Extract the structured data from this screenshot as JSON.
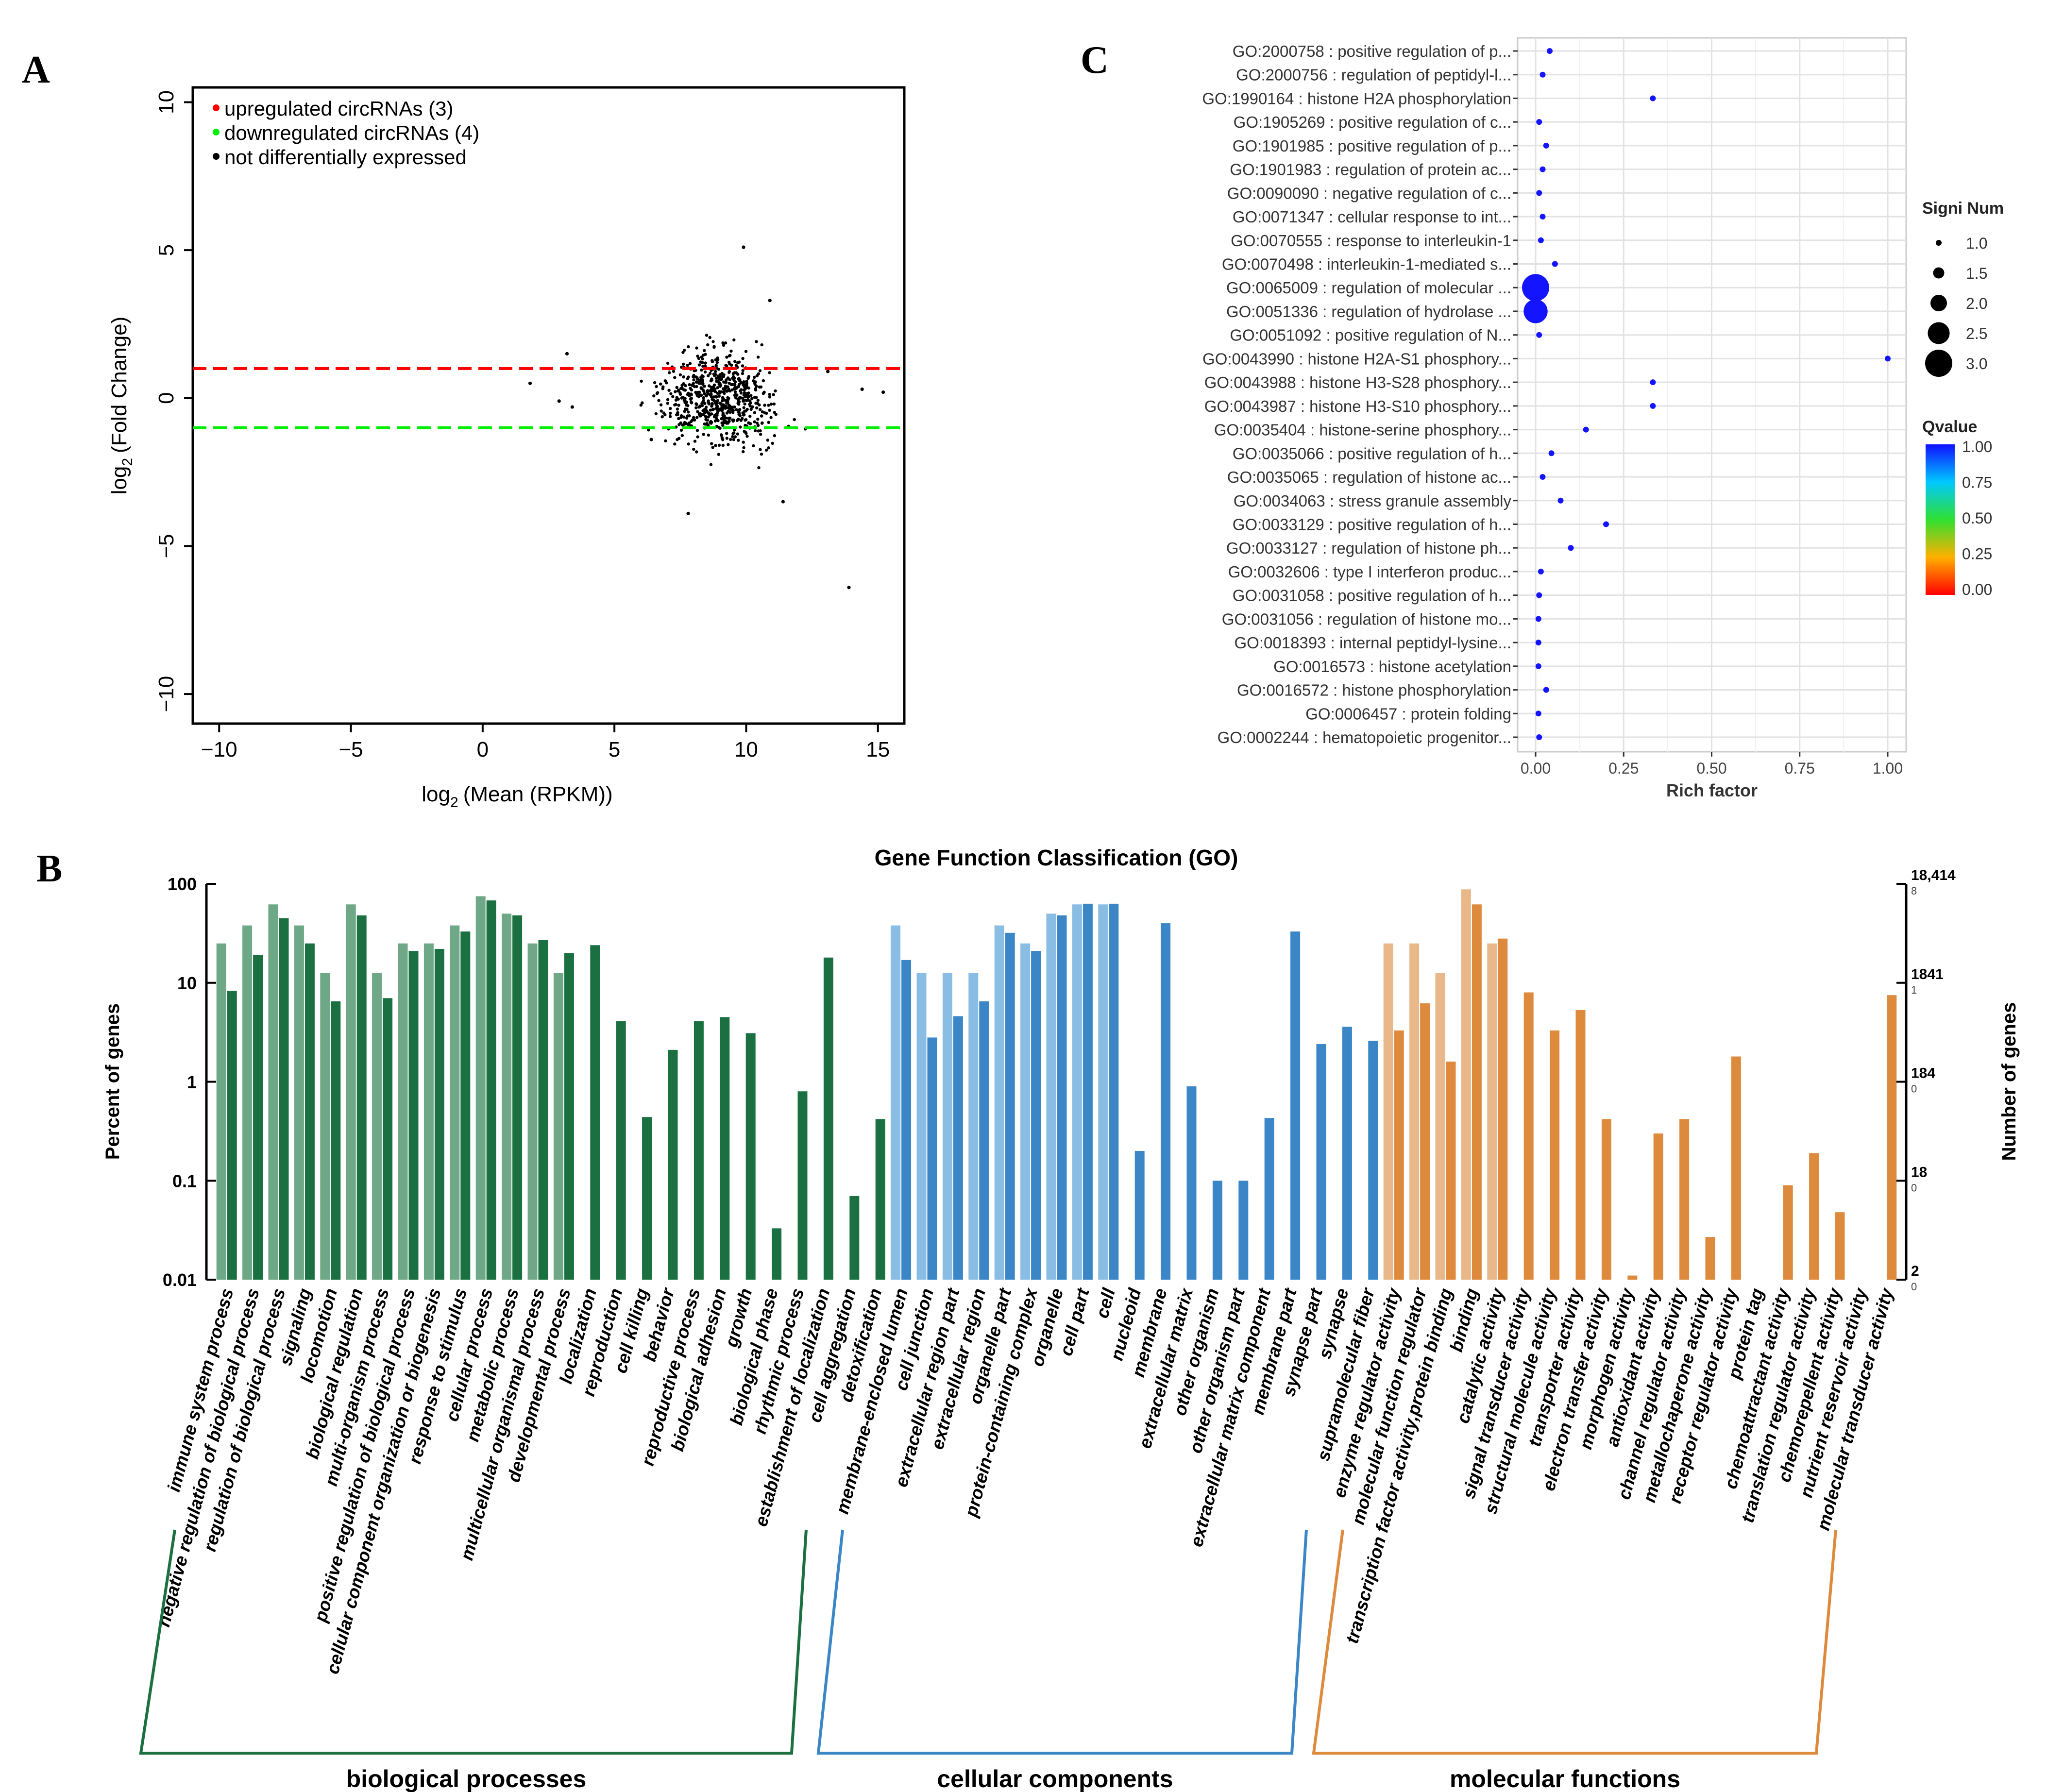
{
  "panels": {
    "a": "A",
    "b": "B",
    "c": "C"
  },
  "chart_data": [
    {
      "panel": "A",
      "type": "scatter",
      "title": "",
      "xlabel": "(Mean  (RPKM))",
      "ylabel": "(Fold Change)",
      "log_prefix": "log",
      "log_sub": "2",
      "xlim": [
        -11,
        16
      ],
      "ylim": [
        -11,
        10.5
      ],
      "xticks": [
        -10,
        -5,
        0,
        5,
        10,
        15
      ],
      "yticks": [
        -10,
        -5,
        0,
        5,
        10
      ],
      "thresholds": [
        {
          "y": 1,
          "color": "#ff0000"
        },
        {
          "y": -1,
          "color": "#00ee00"
        }
      ],
      "legend": {
        "placement": "top-left",
        "entries": [
          {
            "label": "upregulated circRNAs (3)",
            "color": "#ff0000"
          },
          {
            "label": "downregulated circRNAs (4)",
            "color": "#00ee00"
          },
          {
            "label": "not differentially expressed",
            "color": "#000000"
          }
        ]
      },
      "cloud": {
        "count": 700,
        "x_center": 8.9,
        "x_sd": 1.5,
        "y_sd": 1.05
      },
      "outliers": [
        [
          13.9,
          -6.4
        ],
        [
          9.9,
          5.1
        ],
        [
          14.4,
          0.3
        ],
        [
          1.8,
          0.5
        ],
        [
          3.2,
          1.5
        ],
        [
          3.4,
          -0.3
        ],
        [
          2.9,
          -0.1
        ],
        [
          15.2,
          0.2
        ],
        [
          7.8,
          -3.9
        ],
        [
          11.4,
          -3.5
        ],
        [
          10.9,
          3.3
        ],
        [
          6.4,
          -1.4
        ],
        [
          13.1,
          0.9
        ]
      ]
    },
    {
      "panel": "B",
      "type": "bar",
      "title": "Gene Function Classification (GO)",
      "ylabel": "Percent of genes",
      "y2label": "Number of genes",
      "yscale": "log",
      "ylim": [
        0.01,
        100
      ],
      "yticks": [
        "100",
        "10",
        "1",
        "0.1",
        "0.01"
      ],
      "right_ticks": [
        {
          "big": "18,414",
          "small": "8",
          "frac": 1
        },
        {
          "big": "1841",
          "small": "1",
          "frac": 0.75
        },
        {
          "big": "184",
          "small": "0",
          "frac": 0.5
        },
        {
          "big": "18",
          "small": "0",
          "frac": 0.25
        },
        {
          "big": "2",
          "small": "0",
          "frac": 0
        }
      ],
      "legend_note": "pairs: lighter bar = first sample, darker bar = second sample",
      "groups": [
        {
          "name": "biological processes",
          "light": "#6fa886",
          "dark": "#1a7040",
          "categories": [
            "immune system process",
            "negative regulation of biological process",
            "regulation of biological process",
            "signaling",
            "locomotion",
            "biological regulation",
            "multi-organism process",
            "positive regulation of biological process",
            "cellular component organization or biogenesis",
            "response to stimulus",
            "cellular process",
            "metabolic process",
            "multicellular organismal process",
            "developmental process",
            "localization",
            "reproduction",
            "cell killing",
            "behavior",
            "reproductive process",
            "biological adhesion",
            "growth",
            "biological phase",
            "rhythmic process",
            "establishment of localization",
            "cell aggregation",
            "detoxification"
          ],
          "light_values": [
            25,
            38,
            62,
            38,
            12.5,
            62,
            12.5,
            25,
            25,
            38,
            75,
            50,
            25,
            12.5,
            0
          ],
          "dark_values": [
            8.3,
            19,
            45,
            25,
            6.5,
            48,
            7,
            21,
            22,
            33,
            68,
            48,
            27,
            20,
            24,
            4.1,
            0.44,
            2.1,
            4.1,
            4.5,
            3.1,
            0.033,
            0.8,
            18,
            0.07,
            0.42
          ]
        },
        {
          "name": "cellular components",
          "light": "#8abde4",
          "dark": "#3a86c6",
          "categories": [
            "membrane-enclosed lumen",
            "cell junction",
            "extracellular region part",
            "extracellular region",
            "organelle part",
            "protein-containing complex",
            "organelle",
            "cell part",
            "cell",
            "nucleoid",
            "membrane",
            "extracellular matrix",
            "other organism",
            "other organism part",
            "extracellular matrix component",
            "membrane part",
            "synapse part",
            "synapse",
            "supramolecular fiber"
          ],
          "light_values": [
            38,
            12.5,
            12.5,
            12.5,
            38,
            25,
            50,
            62,
            62
          ],
          "dark_values": [
            17,
            2.8,
            4.6,
            6.5,
            32,
            21,
            48,
            63,
            63,
            0.2,
            40,
            0.9,
            0.1,
            0.1,
            0.43,
            33,
            2.4,
            3.6,
            2.6
          ]
        },
        {
          "name": "molecular functions",
          "light": "#e8b88a",
          "dark": "#de8a3c",
          "categories": [
            "enzyme regulator activity",
            "molecular function regulator",
            "transcription factor activity,protein binding",
            "binding",
            "catalytic activity",
            "signal transducer activity",
            "structural molecule activity",
            "transporter activity",
            "electron transfer activity",
            "morphogen activity",
            "antioxidant activity",
            "channel regulator activity",
            "metallochaperone activity",
            "receptor regulator activity",
            "protein tag",
            "chemoattractant activity",
            "translation regulator activity",
            "chemorepellent activity",
            "nutrient reservoir activity",
            "molecular transducer activity"
          ],
          "light_values": [
            25,
            25,
            12.5,
            88,
            25
          ],
          "dark_values": [
            3.3,
            6.2,
            1.6,
            62,
            28,
            8,
            3.3,
            5.3,
            0.42,
            0.011,
            0.3,
            0.42,
            0.027,
            1.8,
            0,
            0.09,
            0.19,
            0.048,
            0,
            7.5
          ]
        }
      ]
    },
    {
      "panel": "C",
      "type": "scatter",
      "xlabel": "Rich factor",
      "xlim": [
        0,
        1
      ],
      "xticks": [
        "0.00",
        "0.25",
        "0.50",
        "0.75",
        "1.00"
      ],
      "size_legend_title": "Signi Num",
      "size_legend": [
        "1.0",
        "1.5",
        "2.0",
        "2.5",
        "3.0"
      ],
      "color_legend_title": "Qvalue",
      "color_legend": [
        "1.00",
        "0.75",
        "0.50",
        "0.25",
        "0.00"
      ],
      "terms": [
        {
          "label": "GO:2000758 : positive regulation of p...",
          "x": 0.04,
          "n": 1
        },
        {
          "label": "GO:2000756 : regulation of peptidyl-l...",
          "x": 0.02,
          "n": 1
        },
        {
          "label": "GO:1990164 : histone H2A phosphorylation",
          "x": 0.333,
          "n": 1
        },
        {
          "label": "GO:1905269 : positive regulation of c...",
          "x": 0.01,
          "n": 1
        },
        {
          "label": "GO:1901985 : positive regulation of p...",
          "x": 0.03,
          "n": 1
        },
        {
          "label": "GO:1901983 : regulation of protein ac...",
          "x": 0.02,
          "n": 1
        },
        {
          "label": "GO:0090090 : negative regulation of c...",
          "x": 0.01,
          "n": 1
        },
        {
          "label": "GO:0071347 : cellular response to int...",
          "x": 0.02,
          "n": 1
        },
        {
          "label": "GO:0070555 : response to interleukin-1",
          "x": 0.015,
          "n": 1
        },
        {
          "label": "GO:0070498 : interleukin-1-mediated s...",
          "x": 0.055,
          "n": 1
        },
        {
          "label": "GO:0065009 : regulation of molecular ...",
          "x": 0.0,
          "n": 3
        },
        {
          "label": "GO:0051336 : regulation of hydrolase ...",
          "x": 0.0,
          "n": 2.7
        },
        {
          "label": "GO:0051092 : positive regulation of N...",
          "x": 0.01,
          "n": 1
        },
        {
          "label": "GO:0043990 : histone H2A-S1 phosphory...",
          "x": 1.0,
          "n": 1
        },
        {
          "label": "GO:0043988 : histone H3-S28 phosphory...",
          "x": 0.333,
          "n": 1
        },
        {
          "label": "GO:0043987 : histone H3-S10 phosphory...",
          "x": 0.333,
          "n": 1
        },
        {
          "label": "GO:0035404 : histone-serine phosphory...",
          "x": 0.143,
          "n": 1
        },
        {
          "label": "GO:0035066 : positive regulation of h...",
          "x": 0.045,
          "n": 1
        },
        {
          "label": "GO:0035065 : regulation of histone ac...",
          "x": 0.02,
          "n": 1
        },
        {
          "label": "GO:0034063 : stress granule assembly",
          "x": 0.071,
          "n": 1
        },
        {
          "label": "GO:0033129 : positive regulation of h...",
          "x": 0.2,
          "n": 1
        },
        {
          "label": "GO:0033127 : regulation of histone ph...",
          "x": 0.1,
          "n": 1
        },
        {
          "label": "GO:0032606 : type I interferon produc...",
          "x": 0.015,
          "n": 1
        },
        {
          "label": "GO:0031058 : positive regulation of h...",
          "x": 0.01,
          "n": 1
        },
        {
          "label": "GO:0031056 : regulation of histone mo...",
          "x": 0.008,
          "n": 1
        },
        {
          "label": "GO:0018393 : internal peptidyl-lysine...",
          "x": 0.008,
          "n": 1
        },
        {
          "label": "GO:0016573 : histone acetylation",
          "x": 0.008,
          "n": 1
        },
        {
          "label": "GO:0016572 : histone phosphorylation",
          "x": 0.03,
          "n": 1
        },
        {
          "label": "GO:0006457 : protein folding",
          "x": 0.008,
          "n": 1
        },
        {
          "label": "GO:0002244 : hematopoietic progenitor...",
          "x": 0.01,
          "n": 1
        }
      ]
    }
  ]
}
